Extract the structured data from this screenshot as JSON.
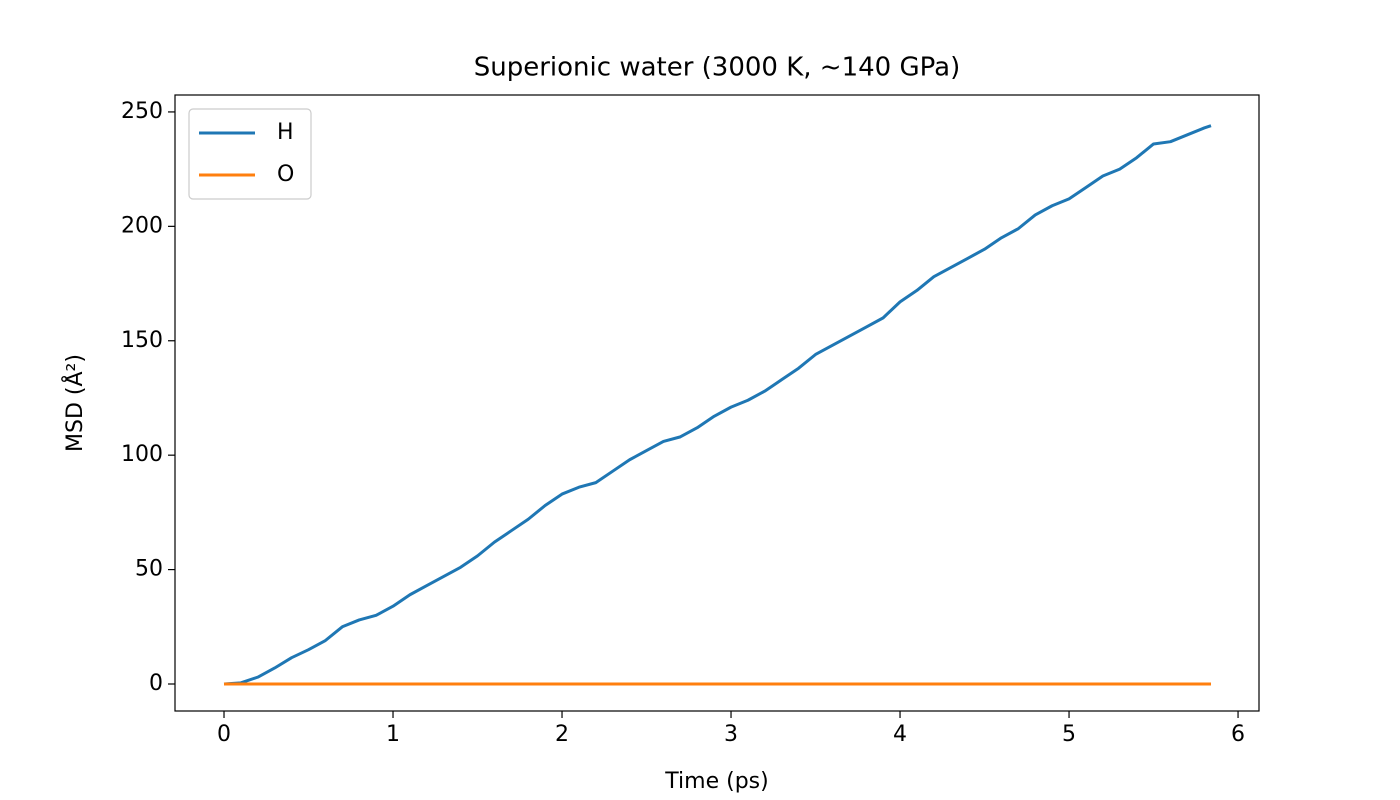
{
  "chart_data": {
    "type": "line",
    "title": "Superionic water (3000 K, ~140 GPa)",
    "x_label": "Time (ps)",
    "y_label": "MSD (Å²)",
    "x": [
      0,
      0.1,
      0.2,
      0.3,
      0.4,
      0.5,
      0.6,
      0.7,
      0.8,
      0.9,
      1.0,
      1.1,
      1.2,
      1.3,
      1.4,
      1.5,
      1.6,
      1.7,
      1.8,
      1.9,
      2.0,
      2.1,
      2.2,
      2.3,
      2.4,
      2.5,
      2.6,
      2.7,
      2.8,
      2.9,
      3.0,
      3.1,
      3.2,
      3.3,
      3.4,
      3.5,
      3.6,
      3.7,
      3.8,
      3.9,
      4.0,
      4.1,
      4.2,
      4.3,
      4.4,
      4.5,
      4.6,
      4.7,
      4.8,
      4.9,
      5.0,
      5.1,
      5.2,
      5.3,
      5.4,
      5.5,
      5.6,
      5.7,
      5.8,
      5.84
    ],
    "series": [
      {
        "name": "H",
        "color": "#1f77b4",
        "values": [
          0,
          0.5,
          3,
          7,
          11.5,
          15,
          19,
          25,
          28,
          30,
          34,
          39,
          43,
          47,
          51,
          56,
          62,
          67,
          72,
          78,
          83,
          86,
          88,
          93,
          98,
          102,
          106,
          108,
          112,
          117,
          121,
          124,
          128,
          133,
          138,
          144,
          148,
          152,
          156,
          160,
          167,
          172,
          178,
          182,
          186,
          190,
          195,
          199,
          205,
          209,
          212,
          217,
          222,
          225,
          230,
          236,
          237,
          240,
          243,
          244
        ]
      },
      {
        "name": "O",
        "color": "#ff7f0e",
        "values": [
          0,
          0,
          0,
          0,
          0,
          0,
          0,
          0,
          0,
          0,
          0,
          0,
          0,
          0,
          0,
          0,
          0,
          0,
          0,
          0,
          0,
          0,
          0,
          0,
          0,
          0,
          0,
          0,
          0,
          0,
          0,
          0,
          0,
          0,
          0,
          0,
          0,
          0,
          0,
          0,
          0,
          0,
          0,
          0,
          0,
          0,
          0,
          0,
          0,
          0,
          0,
          0,
          0,
          0,
          0,
          0,
          0,
          0,
          0,
          0
        ]
      }
    ],
    "xlim": [
      -0.29,
      6.124
    ],
    "ylim": [
      -11.8,
      257.4
    ],
    "xticks": [
      0,
      1,
      2,
      3,
      4,
      5,
      6
    ],
    "yticks": [
      0,
      50,
      100,
      150,
      200,
      250
    ],
    "legend": "upper left"
  }
}
